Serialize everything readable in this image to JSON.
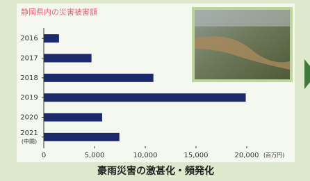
{
  "chart_data": {
    "type": "hbar",
    "title": "静岡県内の災害被害額",
    "categories": [
      "2016",
      "2017",
      "2018",
      "2019",
      "2020",
      "2021\n(中間)"
    ],
    "values": [
      1500,
      4700,
      10800,
      19900,
      5750,
      7450
    ],
    "color": "#1c2a6c",
    "xlim": [
      0,
      20000
    ],
    "xticks": [
      0,
      {
        "value": 5000,
        "label": "5,000"
      },
      {
        "value": 10000,
        "label": "10,000"
      },
      {
        "value": 15000,
        "label": "15,000"
      },
      {
        "value": 20000,
        "label": "20,000"
      }
    ],
    "x_unit": "(百万円)",
    "caption": "豪雨災害の激甚化・頻発化",
    "grid": false
  }
}
